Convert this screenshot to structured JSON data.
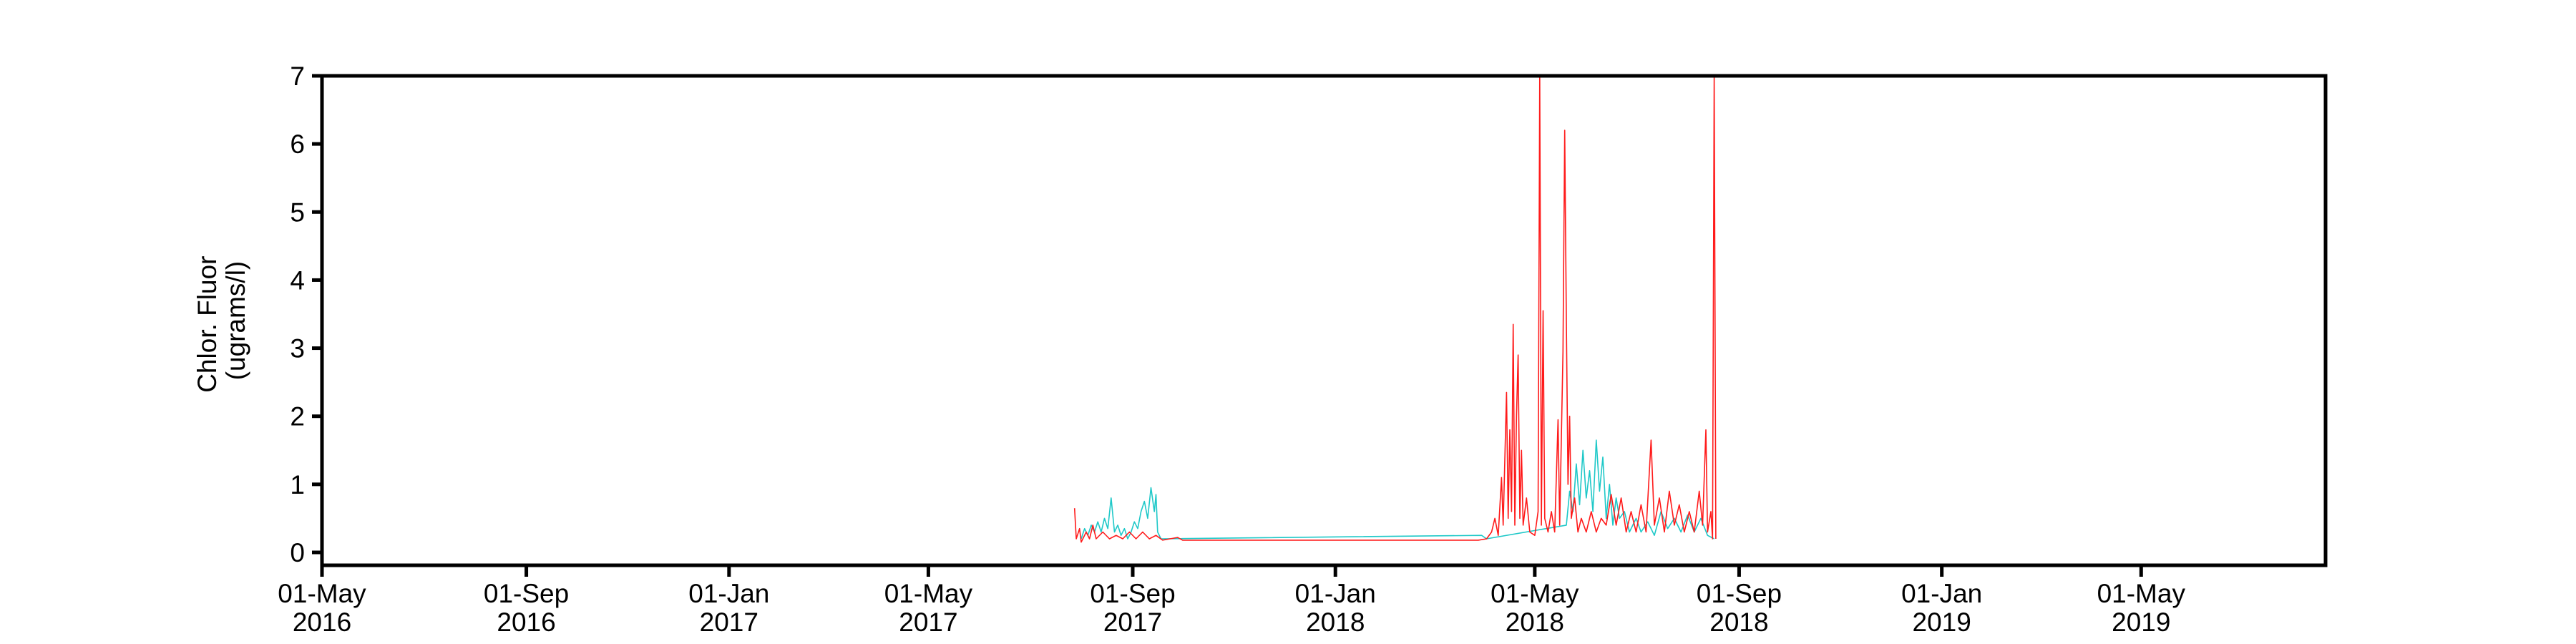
{
  "chart_data": {
    "type": "line",
    "xlabel": "",
    "ylabel_lines": [
      "Chlor. Fluor",
      "(ugrams/l)"
    ],
    "ylim": [
      0,
      7
    ],
    "yticks": [
      0,
      1,
      2,
      3,
      4,
      5,
      6,
      7
    ],
    "xlim": [
      "2016-05-01",
      "2019-08-20"
    ],
    "xticks": [
      {
        "date": "2016-05-01",
        "line1": "01-May",
        "line2": "2016"
      },
      {
        "date": "2016-09-01",
        "line1": "01-Sep",
        "line2": "2016"
      },
      {
        "date": "2017-01-01",
        "line1": "01-Jan",
        "line2": "2017"
      },
      {
        "date": "2017-05-01",
        "line1": "01-May",
        "line2": "2017"
      },
      {
        "date": "2017-09-01",
        "line1": "01-Sep",
        "line2": "2017"
      },
      {
        "date": "2018-01-01",
        "line1": "01-Jan",
        "line2": "2018"
      },
      {
        "date": "2018-05-01",
        "line1": "01-May",
        "line2": "2018"
      },
      {
        "date": "2018-09-01",
        "line1": "01-Sep",
        "line2": "2018"
      },
      {
        "date": "2019-01-01",
        "line1": "01-Jan",
        "line2": "2019"
      },
      {
        "date": "2019-05-01",
        "line1": "01-May",
        "line2": "2019"
      }
    ],
    "grid": false,
    "series": [
      {
        "color": "#1ec8c8",
        "points": [
          [
            "2017-08-01",
            0.2
          ],
          [
            "2017-08-03",
            0.35
          ],
          [
            "2017-08-05",
            0.25
          ],
          [
            "2017-08-07",
            0.4
          ],
          [
            "2017-08-09",
            0.3
          ],
          [
            "2017-08-11",
            0.45
          ],
          [
            "2017-08-13",
            0.3
          ],
          [
            "2017-08-15",
            0.5
          ],
          [
            "2017-08-17",
            0.35
          ],
          [
            "2017-08-19",
            0.8
          ],
          [
            "2017-08-21",
            0.3
          ],
          [
            "2017-08-23",
            0.4
          ],
          [
            "2017-08-25",
            0.25
          ],
          [
            "2017-08-27",
            0.35
          ],
          [
            "2017-08-29",
            0.2
          ],
          [
            "2017-08-31",
            0.3
          ],
          [
            "2017-09-02",
            0.45
          ],
          [
            "2017-09-04",
            0.35
          ],
          [
            "2017-09-06",
            0.6
          ],
          [
            "2017-09-08",
            0.75
          ],
          [
            "2017-09-10",
            0.5
          ],
          [
            "2017-09-12",
            0.95
          ],
          [
            "2017-09-14",
            0.6
          ],
          [
            "2017-09-15",
            0.85
          ],
          [
            "2017-09-16",
            0.3
          ],
          [
            "2017-09-18",
            0.2
          ],
          [
            "2018-03-30",
            0.25
          ],
          [
            "2018-04-02",
            0.2
          ],
          [
            "2018-05-20",
            0.4
          ],
          [
            "2018-05-22",
            0.9
          ],
          [
            "2018-05-24",
            0.6
          ],
          [
            "2018-05-26",
            1.3
          ],
          [
            "2018-05-28",
            0.7
          ],
          [
            "2018-05-30",
            1.5
          ],
          [
            "2018-06-01",
            0.8
          ],
          [
            "2018-06-03",
            1.2
          ],
          [
            "2018-06-05",
            0.6
          ],
          [
            "2018-06-07",
            1.65
          ],
          [
            "2018-06-09",
            0.9
          ],
          [
            "2018-06-11",
            1.4
          ],
          [
            "2018-06-13",
            0.5
          ],
          [
            "2018-06-15",
            1.0
          ],
          [
            "2018-06-17",
            0.4
          ],
          [
            "2018-06-19",
            0.8
          ],
          [
            "2018-06-21",
            0.5
          ],
          [
            "2018-06-24",
            0.6
          ],
          [
            "2018-06-27",
            0.3
          ],
          [
            "2018-07-01",
            0.5
          ],
          [
            "2018-07-04",
            0.3
          ],
          [
            "2018-07-08",
            0.45
          ],
          [
            "2018-07-12",
            0.25
          ],
          [
            "2018-07-16",
            0.6
          ],
          [
            "2018-07-20",
            0.35
          ],
          [
            "2018-07-24",
            0.5
          ],
          [
            "2018-07-28",
            0.3
          ],
          [
            "2018-08-01",
            0.55
          ],
          [
            "2018-08-05",
            0.3
          ],
          [
            "2018-08-09",
            0.5
          ],
          [
            "2018-08-13",
            0.25
          ],
          [
            "2018-08-17",
            0.2
          ]
        ]
      },
      {
        "color": "#ff1a1a",
        "points": [
          [
            "2017-07-28",
            0.65
          ],
          [
            "2017-07-29",
            0.2
          ],
          [
            "2017-07-31",
            0.35
          ],
          [
            "2017-08-01",
            0.15
          ],
          [
            "2017-08-04",
            0.3
          ],
          [
            "2017-08-06",
            0.2
          ],
          [
            "2017-08-08",
            0.4
          ],
          [
            "2017-08-10",
            0.2
          ],
          [
            "2017-08-14",
            0.3
          ],
          [
            "2017-08-18",
            0.2
          ],
          [
            "2017-08-22",
            0.25
          ],
          [
            "2017-08-26",
            0.2
          ],
          [
            "2017-08-30",
            0.3
          ],
          [
            "2017-09-03",
            0.2
          ],
          [
            "2017-09-07",
            0.3
          ],
          [
            "2017-09-11",
            0.2
          ],
          [
            "2017-09-15",
            0.25
          ],
          [
            "2017-09-19",
            0.18
          ],
          [
            "2017-09-28",
            0.22
          ],
          [
            "2017-10-01",
            0.18
          ],
          [
            "2018-03-28",
            0.18
          ],
          [
            "2018-04-02",
            0.2
          ],
          [
            "2018-04-05",
            0.3
          ],
          [
            "2018-04-07",
            0.5
          ],
          [
            "2018-04-09",
            0.25
          ],
          [
            "2018-04-11",
            1.1
          ],
          [
            "2018-04-12",
            0.4
          ],
          [
            "2018-04-14",
            2.35
          ],
          [
            "2018-04-15",
            0.5
          ],
          [
            "2018-04-16",
            1.8
          ],
          [
            "2018-04-17",
            0.6
          ],
          [
            "2018-04-18",
            3.35
          ],
          [
            "2018-04-19",
            0.4
          ],
          [
            "2018-04-20",
            2.0
          ],
          [
            "2018-04-21",
            2.9
          ],
          [
            "2018-04-22",
            0.5
          ],
          [
            "2018-04-23",
            1.5
          ],
          [
            "2018-04-24",
            0.4
          ],
          [
            "2018-04-26",
            0.8
          ],
          [
            "2018-04-28",
            0.3
          ],
          [
            "2018-05-01",
            0.25
          ],
          [
            "2018-05-03",
            0.6
          ],
          [
            "2018-05-04",
            7.0
          ],
          [
            "2018-05-05",
            0.4
          ],
          [
            "2018-05-06",
            3.55
          ],
          [
            "2018-05-07",
            0.5
          ],
          [
            "2018-05-09",
            0.3
          ],
          [
            "2018-05-11",
            0.6
          ],
          [
            "2018-05-13",
            0.3
          ],
          [
            "2018-05-15",
            1.95
          ],
          [
            "2018-05-16",
            0.4
          ],
          [
            "2018-05-18",
            2.95
          ],
          [
            "2018-05-19",
            6.2
          ],
          [
            "2018-05-20",
            3.4
          ],
          [
            "2018-05-21",
            1.0
          ],
          [
            "2018-05-22",
            2.0
          ],
          [
            "2018-05-23",
            0.5
          ],
          [
            "2018-05-25",
            0.8
          ],
          [
            "2018-05-27",
            0.3
          ],
          [
            "2018-05-29",
            0.5
          ],
          [
            "2018-06-01",
            0.3
          ],
          [
            "2018-06-04",
            0.6
          ],
          [
            "2018-06-07",
            0.3
          ],
          [
            "2018-06-10",
            0.5
          ],
          [
            "2018-06-13",
            0.4
          ],
          [
            "2018-06-16",
            0.85
          ],
          [
            "2018-06-19",
            0.4
          ],
          [
            "2018-06-22",
            0.8
          ],
          [
            "2018-06-25",
            0.3
          ],
          [
            "2018-06-28",
            0.6
          ],
          [
            "2018-07-01",
            0.3
          ],
          [
            "2018-07-04",
            0.7
          ],
          [
            "2018-07-07",
            0.3
          ],
          [
            "2018-07-10",
            1.65
          ],
          [
            "2018-07-12",
            0.4
          ],
          [
            "2018-07-15",
            0.8
          ],
          [
            "2018-07-18",
            0.3
          ],
          [
            "2018-07-21",
            0.9
          ],
          [
            "2018-07-24",
            0.4
          ],
          [
            "2018-07-27",
            0.7
          ],
          [
            "2018-07-30",
            0.3
          ],
          [
            "2018-08-02",
            0.6
          ],
          [
            "2018-08-05",
            0.3
          ],
          [
            "2018-08-08",
            0.9
          ],
          [
            "2018-08-10",
            0.4
          ],
          [
            "2018-08-12",
            1.8
          ],
          [
            "2018-08-13",
            0.3
          ],
          [
            "2018-08-15",
            0.6
          ],
          [
            "2018-08-16",
            0.2
          ],
          [
            "2018-08-17",
            7.0
          ],
          [
            "2018-08-18",
            0.2
          ]
        ]
      }
    ]
  }
}
